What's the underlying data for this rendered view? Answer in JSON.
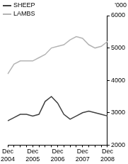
{
  "chart_data": {
    "type": "line",
    "y_label": "'000",
    "categories": [
      "Dec 2004",
      null,
      null,
      null,
      "Dec 2005",
      null,
      null,
      null,
      "Dec 2006",
      null,
      null,
      null,
      "Dec 2007",
      null,
      null,
      null,
      "Dec 2008"
    ],
    "series": [
      {
        "name": "SHEEP",
        "color": "#404040",
        "values": [
          2750,
          2850,
          2950,
          2950,
          2900,
          2950,
          3350,
          3500,
          3300,
          2950,
          2800,
          2900,
          3000,
          3050,
          3000,
          2950,
          2900
        ]
      },
      {
        "name": "LAMBS",
        "color": "#b4b4b4",
        "values": [
          4200,
          4500,
          4600,
          4600,
          4600,
          4700,
          4800,
          5000,
          5050,
          5100,
          5250,
          5350,
          5300,
          5100,
          5000,
          5050,
          5200
        ]
      }
    ],
    "ylim": [
      2000,
      6000
    ],
    "yticks": [
      2000,
      3000,
      4000,
      5000,
      6000
    ],
    "grid": false,
    "legend": "top-left"
  }
}
